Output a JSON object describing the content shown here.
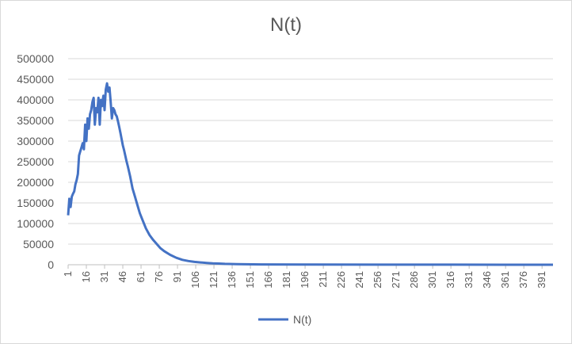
{
  "chart_data": {
    "type": "line",
    "title": "N(t)",
    "xlabel": "",
    "ylabel": "",
    "xlim": [
      1,
      400
    ],
    "ylim": [
      0,
      500000
    ],
    "y_ticks": [
      0,
      50000,
      100000,
      150000,
      200000,
      250000,
      300000,
      350000,
      400000,
      450000,
      500000
    ],
    "x_tick_labels": [
      1,
      16,
      31,
      46,
      61,
      76,
      91,
      106,
      121,
      136,
      151,
      166,
      181,
      196,
      211,
      226,
      241,
      256,
      271,
      286,
      301,
      316,
      331,
      346,
      361,
      376,
      391
    ],
    "grid": "horizontal",
    "legend": "bottom",
    "series": [
      {
        "name": "N(t)",
        "color": "#4472c4",
        "x": [
          1,
          2,
          3,
          4,
          5,
          6,
          7,
          8,
          9,
          10,
          11,
          12,
          13,
          14,
          15,
          16,
          17,
          18,
          19,
          20,
          21,
          22,
          23,
          24,
          25,
          26,
          27,
          28,
          29,
          30,
          31,
          32,
          33,
          34,
          35,
          36,
          37,
          38,
          39,
          40,
          41,
          42,
          43,
          44,
          45,
          46,
          47,
          48,
          49,
          50,
          52,
          54,
          56,
          58,
          60,
          62,
          65,
          68,
          71,
          74,
          77,
          80,
          85,
          90,
          95,
          100,
          105,
          110,
          115,
          120,
          125,
          130,
          140,
          160,
          200,
          260,
          320,
          400
        ],
        "y": [
          120000,
          160000,
          140000,
          165000,
          172000,
          178000,
          195000,
          205000,
          220000,
          265000,
          275000,
          285000,
          295000,
          280000,
          340000,
          300000,
          355000,
          330000,
          365000,
          375000,
          395000,
          405000,
          340000,
          380000,
          370000,
          405000,
          340000,
          400000,
          385000,
          410000,
          375000,
          425000,
          440000,
          420000,
          430000,
          395000,
          355000,
          380000,
          375000,
          365000,
          360000,
          348000,
          335000,
          320000,
          305000,
          290000,
          278000,
          265000,
          252000,
          240000,
          215000,
          185000,
          165000,
          145000,
          125000,
          110000,
          88000,
          72000,
          60000,
          50000,
          40000,
          33000,
          24000,
          17000,
          12000,
          9000,
          7000,
          5500,
          4500,
          3500,
          2800,
          2200,
          1500,
          800,
          400,
          200,
          100,
          50
        ]
      }
    ]
  }
}
